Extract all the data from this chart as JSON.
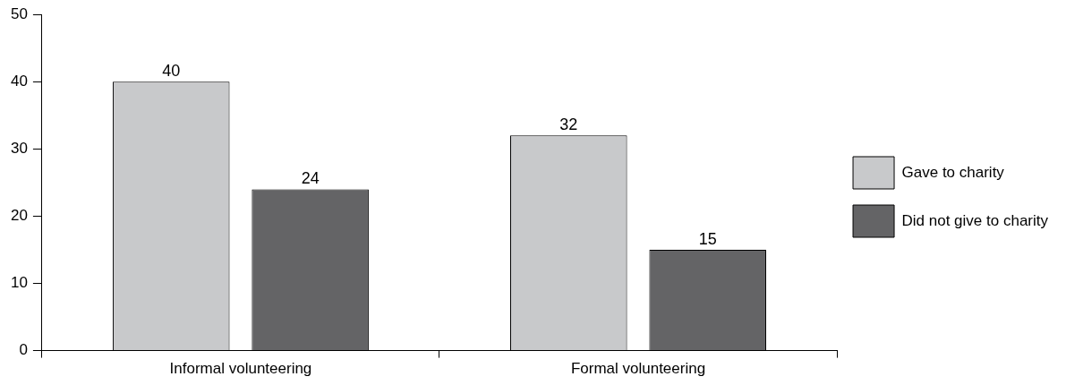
{
  "chart_data": {
    "type": "bar",
    "categories": [
      "Informal volunteering",
      "Formal volunteering"
    ],
    "series": [
      {
        "name": "Gave to charity",
        "color": "#c8c9cb",
        "values": [
          40,
          32
        ]
      },
      {
        "name": "Did not give to charity",
        "color": "#646466",
        "values": [
          24,
          15
        ]
      }
    ],
    "ylim": [
      0,
      50
    ],
    "yticks": [
      0,
      10,
      20,
      30,
      40,
      50
    ],
    "grid": false,
    "legend": "right",
    "data_labels": true
  }
}
